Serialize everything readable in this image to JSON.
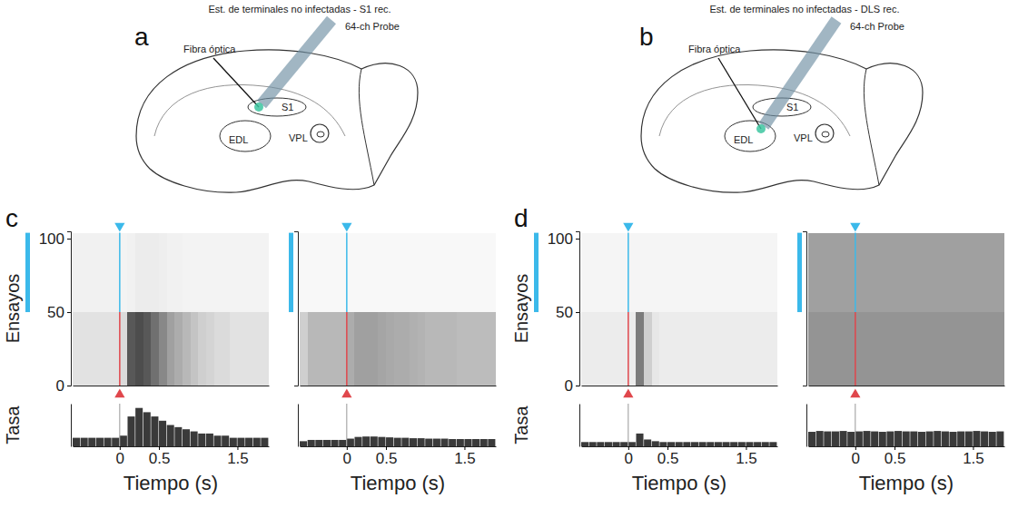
{
  "diagrams": [
    {
      "letter": "a",
      "title": "Est. de terminales no infectadas - S1 rec.",
      "probe_label": "64-ch Probe",
      "fiber_label": "Fibra óptica",
      "regions": [
        "S1",
        "EDL",
        "VPL"
      ]
    },
    {
      "letter": "b",
      "title": "Est. de terminales no infectadas - DLS rec.",
      "probe_label": "64-ch Probe",
      "fiber_label": "Fibra óptica",
      "regions": [
        "S1",
        "EDL",
        "VPL"
      ]
    }
  ],
  "chart_data": [
    {
      "type": "raster",
      "letter": "c",
      "xlabel": "Tiempo (s)",
      "ylabel": "Ensayos",
      "rate_label": "Tasa",
      "xlim": [
        -0.6,
        1.9
      ],
      "xticks": [
        0,
        0.5,
        1.5
      ],
      "ylim": [
        0,
        105
      ],
      "yticks": [
        0,
        50,
        100
      ],
      "bins": [
        -0.6,
        -0.5,
        -0.4,
        -0.3,
        -0.2,
        -0.1,
        0,
        0.1,
        0.2,
        0.3,
        0.4,
        0.5,
        0.6,
        0.7,
        0.8,
        0.9,
        1,
        1.1,
        1.2,
        1.3,
        1.4,
        1.5,
        1.6,
        1.7,
        1.8,
        1.9
      ],
      "groups": [
        {
          "first_trial": 0,
          "last_trial": 50,
          "density": [
            0.12,
            0.12,
            0.12,
            0.12,
            0.12,
            0.12,
            0.15,
            0.7,
            0.75,
            0.7,
            0.6,
            0.5,
            0.4,
            0.35,
            0.3,
            0.25,
            0.2,
            0.18,
            0.15,
            0.15,
            0.12,
            0.12,
            0.12,
            0.12,
            0.12
          ]
        },
        {
          "first_trial": 50,
          "last_trial": 104,
          "density": [
            0.06,
            0.06,
            0.06,
            0.06,
            0.06,
            0.06,
            0.05,
            0.06,
            0.08,
            0.08,
            0.08,
            0.07,
            0.06,
            0.06,
            0.05,
            0.05,
            0.05,
            0.05,
            0.05,
            0.05,
            0.05,
            0.05,
            0.05,
            0.05,
            0.05
          ]
        }
      ],
      "density_range": [
        0,
        1
      ],
      "rate": [
        2,
        2,
        2,
        2,
        2,
        2,
        2.5,
        7,
        9,
        8,
        7,
        6,
        5,
        4.5,
        4,
        3.5,
        3,
        3,
        2.5,
        2.5,
        2,
        2,
        2,
        2,
        2
      ],
      "rate_lim": [
        0,
        10
      ],
      "stim_time": 0,
      "laser_trials": [
        50,
        104
      ]
    },
    {
      "type": "raster",
      "xlabel": "Tiempo (s)",
      "tick_labels": "x",
      "xlim": [
        -0.6,
        1.9
      ],
      "xticks": [
        0,
        0.5,
        1.5
      ],
      "ylim": [
        0,
        105
      ],
      "bins": [
        -0.6,
        -0.5,
        -0.4,
        -0.3,
        -0.2,
        -0.1,
        0,
        0.1,
        0.2,
        0.3,
        0.4,
        0.5,
        0.6,
        0.7,
        0.8,
        0.9,
        1,
        1.1,
        1.2,
        1.3,
        1.4,
        1.5,
        1.6,
        1.7,
        1.8,
        1.9
      ],
      "groups": [
        {
          "first_trial": 0,
          "last_trial": 50,
          "density": [
            0.2,
            0.3,
            0.3,
            0.3,
            0.3,
            0.3,
            0.35,
            0.4,
            0.4,
            0.4,
            0.38,
            0.36,
            0.35,
            0.35,
            0.33,
            0.32,
            0.3,
            0.3,
            0.3,
            0.3,
            0.28,
            0.28,
            0.28,
            0.28,
            0.28
          ]
        },
        {
          "first_trial": 50,
          "last_trial": 104,
          "density": [
            0.03,
            0.03,
            0.03,
            0.03,
            0.03,
            0.03,
            0.03,
            0.03,
            0.03,
            0.03,
            0.03,
            0.03,
            0.03,
            0.03,
            0.03,
            0.03,
            0.03,
            0.03,
            0.03,
            0.03,
            0.03,
            0.03,
            0.03,
            0.03,
            0.03
          ]
        }
      ],
      "density_range": [
        0,
        1
      ],
      "rate": [
        1.2,
        1.5,
        1.5,
        1.5,
        1.5,
        1.5,
        1.8,
        2.2,
        2.3,
        2.3,
        2.2,
        2.1,
        2,
        2,
        1.9,
        1.9,
        1.8,
        1.8,
        1.8,
        1.7,
        1.7,
        1.7,
        1.7,
        1.7,
        1.7
      ],
      "rate_lim": [
        0,
        10
      ],
      "stim_time": 0,
      "laser_trials": [
        50,
        104
      ]
    },
    {
      "type": "raster",
      "letter": "d",
      "xlabel": "Tiempo (s)",
      "ylabel": "Ensayos",
      "rate_label": "Tasa",
      "xlim": [
        -0.6,
        1.9
      ],
      "xticks": [
        0,
        0.5,
        1.5
      ],
      "ylim": [
        0,
        105
      ],
      "yticks": [
        0,
        50,
        100
      ],
      "bins": [
        -0.6,
        -0.5,
        -0.4,
        -0.3,
        -0.2,
        -0.1,
        0,
        0.1,
        0.2,
        0.3,
        0.4,
        0.5,
        0.6,
        0.7,
        0.8,
        0.9,
        1,
        1.1,
        1.2,
        1.3,
        1.4,
        1.5,
        1.6,
        1.7,
        1.8,
        1.9
      ],
      "groups": [
        {
          "first_trial": 0,
          "last_trial": 50,
          "density": [
            0.08,
            0.08,
            0.08,
            0.08,
            0.08,
            0.08,
            0.08,
            0.55,
            0.2,
            0.1,
            0.08,
            0.08,
            0.08,
            0.08,
            0.08,
            0.08,
            0.08,
            0.08,
            0.08,
            0.08,
            0.08,
            0.08,
            0.08,
            0.08,
            0.08
          ]
        },
        {
          "first_trial": 50,
          "last_trial": 104,
          "density": [
            0.04,
            0.04,
            0.04,
            0.04,
            0.04,
            0.04,
            0.04,
            0.04,
            0.04,
            0.04,
            0.04,
            0.04,
            0.04,
            0.04,
            0.04,
            0.04,
            0.04,
            0.04,
            0.04,
            0.04,
            0.04,
            0.04,
            0.04,
            0.04,
            0.04
          ]
        }
      ],
      "density_range": [
        0,
        1
      ],
      "rate": [
        1,
        1,
        1,
        1,
        1,
        1,
        1,
        3,
        1.6,
        1.2,
        1,
        1,
        1,
        1,
        1,
        1,
        1,
        1,
        1,
        1,
        1,
        1,
        1,
        1,
        1
      ],
      "rate_lim": [
        0,
        10
      ],
      "stim_time": 0,
      "laser_trials": [
        50,
        104
      ]
    },
    {
      "type": "raster",
      "xlabel": "Tiempo (s)",
      "tick_labels": "x",
      "xlim": [
        -0.6,
        1.9
      ],
      "xticks": [
        0,
        0.5,
        1.5
      ],
      "ylim": [
        0,
        105
      ],
      "bins": [
        -0.6,
        -0.5,
        -0.4,
        -0.3,
        -0.2,
        -0.1,
        0,
        0.1,
        0.2,
        0.3,
        0.4,
        0.5,
        0.6,
        0.7,
        0.8,
        0.9,
        1,
        1.1,
        1.2,
        1.3,
        1.4,
        1.5,
        1.6,
        1.7,
        1.8,
        1.9
      ],
      "groups": [
        {
          "first_trial": 0,
          "last_trial": 50,
          "density": [
            0.45,
            0.45,
            0.45,
            0.45,
            0.45,
            0.45,
            0.45,
            0.45,
            0.45,
            0.45,
            0.45,
            0.45,
            0.45,
            0.45,
            0.45,
            0.45,
            0.45,
            0.45,
            0.45,
            0.45,
            0.45,
            0.45,
            0.45,
            0.45,
            0.45
          ]
        },
        {
          "first_trial": 50,
          "last_trial": 104,
          "density": [
            0.4,
            0.4,
            0.4,
            0.4,
            0.4,
            0.4,
            0.4,
            0.4,
            0.4,
            0.4,
            0.4,
            0.4,
            0.4,
            0.4,
            0.4,
            0.4,
            0.4,
            0.4,
            0.4,
            0.4,
            0.4,
            0.4,
            0.4,
            0.4,
            0.4
          ]
        }
      ],
      "density_range": [
        0,
        1
      ],
      "rate": [
        3.4,
        3.6,
        3.5,
        3.5,
        3.6,
        3.4,
        3.5,
        3.6,
        3.5,
        3.4,
        3.5,
        3.6,
        3.5,
        3.5,
        3.4,
        3.5,
        3.6,
        3.5,
        3.4,
        3.5,
        3.5,
        3.6,
        3.5,
        3.4,
        3.5
      ],
      "rate_lim": [
        0,
        10
      ],
      "stim_time": 0,
      "laser_trials": [
        50,
        104
      ]
    }
  ]
}
